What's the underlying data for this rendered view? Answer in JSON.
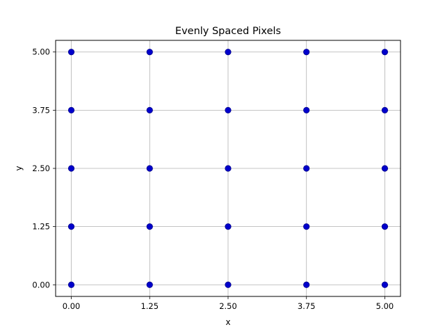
{
  "chart_data": {
    "type": "scatter",
    "title": "Evenly Spaced Pixels",
    "xlabel": "x",
    "ylabel": "y",
    "xlim": [
      -0.25,
      5.25
    ],
    "ylim": [
      -0.25,
      5.25
    ],
    "xticks": [
      0,
      1.25,
      2.5,
      3.75,
      5
    ],
    "xtick_labels": [
      "0.00",
      "1.25",
      "2.50",
      "3.75",
      "5.00"
    ],
    "yticks": [
      0,
      1.25,
      2.5,
      3.75,
      5
    ],
    "ytick_labels": [
      "0.00",
      "1.25",
      "2.50",
      "3.75",
      "5.00"
    ],
    "grid": true,
    "marker_color": "#0000cc",
    "marker_edge_color": "#00008b",
    "grid_color": "#b0b0b0",
    "points": [
      {
        "x": 0,
        "y": 0
      },
      {
        "x": 1.25,
        "y": 0
      },
      {
        "x": 2.5,
        "y": 0
      },
      {
        "x": 3.75,
        "y": 0
      },
      {
        "x": 5,
        "y": 0
      },
      {
        "x": 0,
        "y": 1.25
      },
      {
        "x": 1.25,
        "y": 1.25
      },
      {
        "x": 2.5,
        "y": 1.25
      },
      {
        "x": 3.75,
        "y": 1.25
      },
      {
        "x": 5,
        "y": 1.25
      },
      {
        "x": 0,
        "y": 2.5
      },
      {
        "x": 1.25,
        "y": 2.5
      },
      {
        "x": 2.5,
        "y": 2.5
      },
      {
        "x": 3.75,
        "y": 2.5
      },
      {
        "x": 5,
        "y": 2.5
      },
      {
        "x": 0,
        "y": 3.75
      },
      {
        "x": 1.25,
        "y": 3.75
      },
      {
        "x": 2.5,
        "y": 3.75
      },
      {
        "x": 3.75,
        "y": 3.75
      },
      {
        "x": 5,
        "y": 3.75
      },
      {
        "x": 0,
        "y": 5
      },
      {
        "x": 1.25,
        "y": 5
      },
      {
        "x": 2.5,
        "y": 5
      },
      {
        "x": 3.75,
        "y": 5
      },
      {
        "x": 5,
        "y": 5
      }
    ]
  }
}
